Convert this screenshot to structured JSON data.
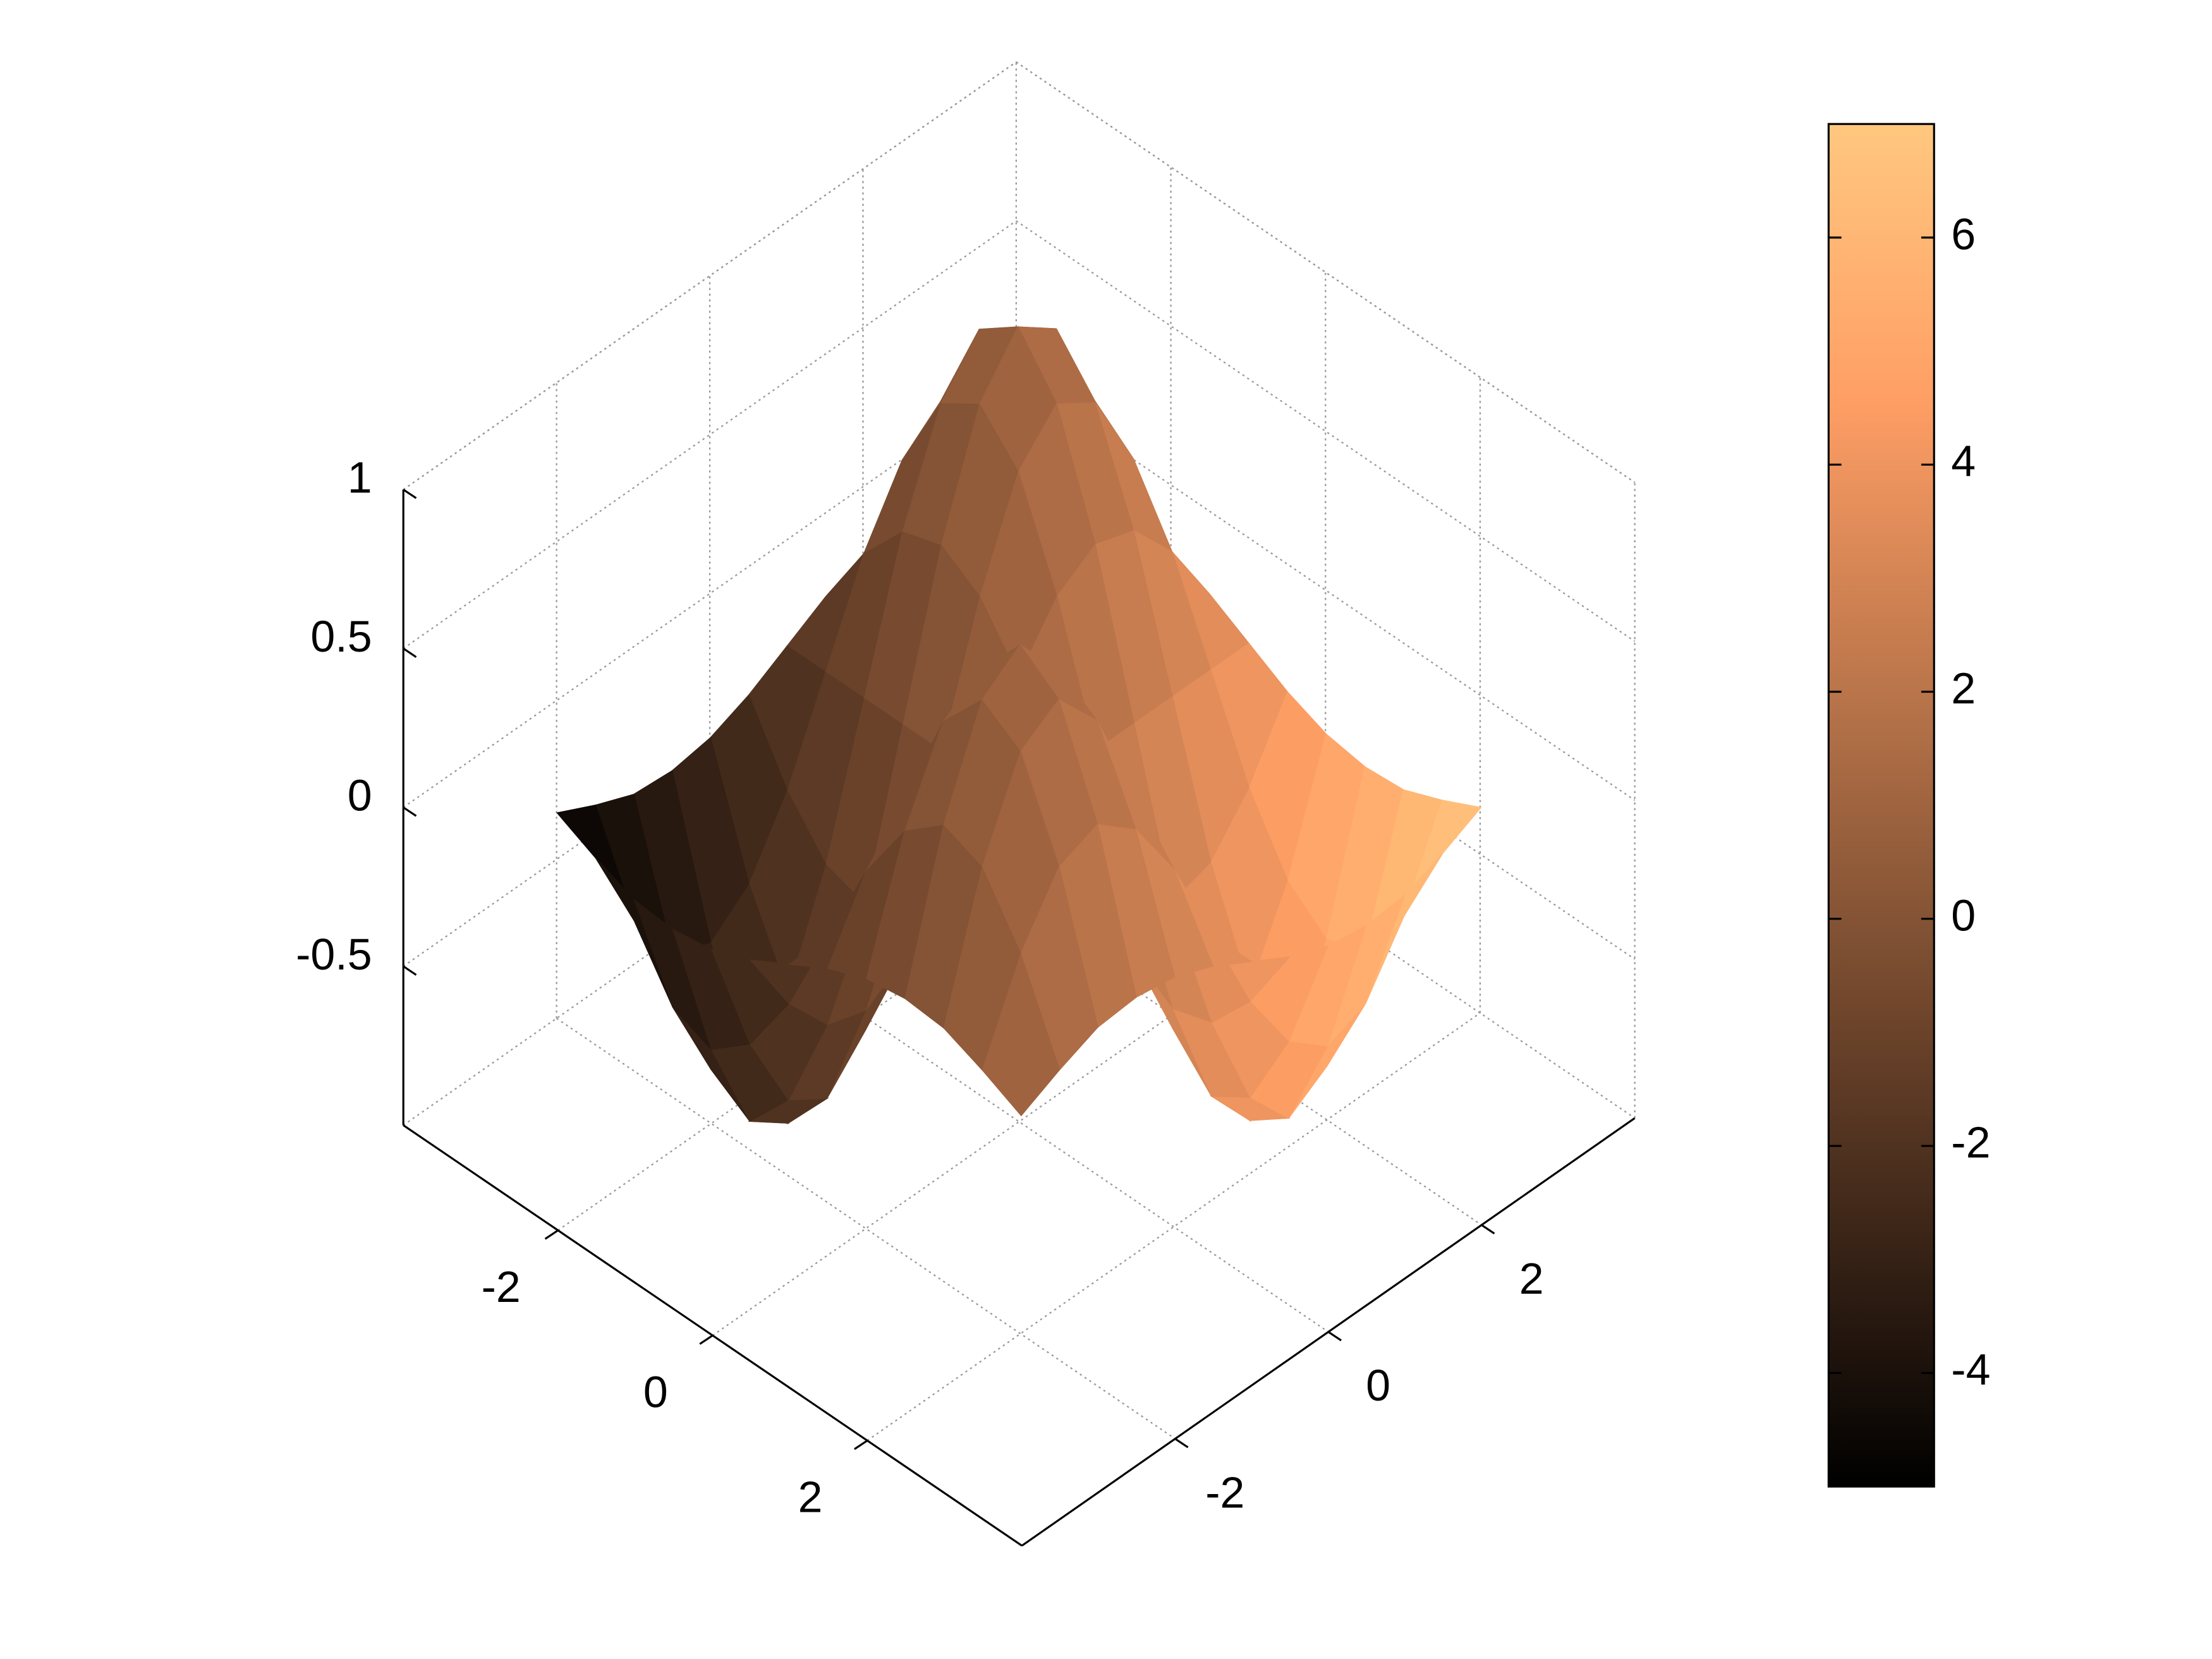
{
  "chart_data": {
    "type": "surface",
    "x": [
      -3,
      -2.5,
      -2,
      -1.5,
      -1,
      -0.5,
      0,
      0.5,
      1,
      1.5,
      2,
      2.5,
      3
    ],
    "y": [
      -3,
      -2.5,
      -2,
      -1.5,
      -1,
      -0.5,
      0,
      0.5,
      1,
      1.5,
      2,
      2.5,
      3
    ],
    "z": [
      [
        -0.02,
        -0.08,
        -0.13,
        -0.14,
        -0.12,
        -0.07,
        0,
        0.07,
        0.12,
        0.14,
        0.13,
        0.08,
        0.02
      ],
      [
        -0.08,
        -0.36,
        -0.55,
        -0.6,
        -0.5,
        -0.29,
        0,
        0.29,
        0.5,
        0.6,
        0.55,
        0.36,
        0.08
      ],
      [
        -0.13,
        -0.55,
        -0.83,
        -0.91,
        -0.76,
        -0.44,
        0,
        0.44,
        0.76,
        0.91,
        0.83,
        0.55,
        0.13
      ],
      [
        -0.14,
        -0.6,
        -0.91,
        -1,
        -0.84,
        -0.48,
        0,
        0.48,
        0.84,
        1,
        0.91,
        0.6,
        0.14
      ],
      [
        -0.12,
        -0.5,
        -0.76,
        -0.84,
        -0.71,
        -0.4,
        0,
        0.4,
        0.71,
        0.84,
        0.76,
        0.5,
        0.12
      ],
      [
        -0.07,
        -0.29,
        -0.44,
        -0.48,
        -0.4,
        -0.23,
        0,
        0.23,
        0.4,
        0.48,
        0.44,
        0.29,
        0.07
      ],
      [
        0,
        0,
        0,
        0,
        0,
        0,
        0,
        0,
        0,
        0,
        0,
        0,
        0
      ],
      [
        0.07,
        0.29,
        0.44,
        0.48,
        0.4,
        0.23,
        0,
        -0.23,
        -0.4,
        -0.48,
        -0.44,
        -0.29,
        -0.07
      ],
      [
        0.12,
        0.5,
        0.76,
        0.84,
        0.71,
        0.4,
        0,
        -0.4,
        -0.71,
        -0.84,
        -0.76,
        -0.5,
        -0.12
      ],
      [
        0.14,
        0.6,
        0.91,
        1,
        0.84,
        0.48,
        0,
        -0.48,
        -0.84,
        -1,
        -0.91,
        -0.6,
        -0.14
      ],
      [
        0.13,
        0.55,
        0.83,
        0.91,
        0.76,
        0.44,
        0,
        -0.44,
        -0.76,
        -0.91,
        -0.83,
        -0.55,
        -0.13
      ],
      [
        0.08,
        0.36,
        0.55,
        0.6,
        0.5,
        0.29,
        0,
        -0.29,
        -0.5,
        -0.6,
        -0.55,
        -0.36,
        -0.08
      ],
      [
        0.02,
        0.08,
        0.13,
        0.14,
        0.12,
        0.07,
        0,
        -0.07,
        -0.12,
        -0.14,
        -0.13,
        -0.08,
        -0.02
      ]
    ],
    "c": [
      [
        -5,
        -4.5,
        -4,
        -3.5,
        -3,
        -2.5,
        -2,
        -1.5,
        -1,
        -0.5,
        0,
        0.5,
        1
      ],
      [
        -4.5,
        -4,
        -3.5,
        -3,
        -2.5,
        -2,
        -1.5,
        -1,
        -0.5,
        0,
        0.5,
        1,
        1.5
      ],
      [
        -4,
        -3.5,
        -3,
        -2.5,
        -2,
        -1.5,
        -1,
        -0.5,
        0,
        0.5,
        1,
        1.5,
        2
      ],
      [
        -3.5,
        -3,
        -2.5,
        -2,
        -1.5,
        -1,
        -0.5,
        0,
        0.5,
        1,
        1.5,
        2,
        2.5
      ],
      [
        -3,
        -2.5,
        -2,
        -1.5,
        -1,
        -0.5,
        0,
        0.5,
        1,
        1.5,
        2,
        2.5,
        3
      ],
      [
        -2.5,
        -2,
        -1.5,
        -1,
        -0.5,
        0,
        0.5,
        1,
        1.5,
        2,
        2.5,
        3,
        3.5
      ],
      [
        -2,
        -1.5,
        -1,
        -0.5,
        0,
        0.5,
        1,
        1.5,
        2,
        2.5,
        3,
        3.5,
        4
      ],
      [
        -1.5,
        -1,
        -0.5,
        0,
        0.5,
        1,
        1.5,
        2,
        2.5,
        3,
        3.5,
        4,
        4.5
      ],
      [
        -1,
        -0.5,
        0,
        0.5,
        1,
        1.5,
        2,
        2.5,
        3,
        3.5,
        4,
        4.5,
        5
      ],
      [
        -0.5,
        0,
        0.5,
        1,
        1.5,
        2,
        2.5,
        3,
        3.5,
        4,
        4.5,
        5,
        5.5
      ],
      [
        0,
        0.5,
        1,
        1.5,
        2,
        2.5,
        3,
        3.5,
        4,
        4.5,
        5,
        5.5,
        6
      ],
      [
        0.5,
        1,
        1.5,
        2,
        2.5,
        3,
        3.5,
        4,
        4.5,
        5,
        5.5,
        6,
        6.5
      ],
      [
        1,
        1.5,
        2,
        2.5,
        3,
        3.5,
        4,
        4.5,
        5,
        5.5,
        6,
        6.5,
        7
      ]
    ],
    "xlim": [
      -4,
      4
    ],
    "ylim": [
      -4,
      4
    ],
    "zlim": [
      -1,
      1
    ],
    "xticks": [
      -2,
      0,
      2
    ],
    "yticks": [
      -2,
      0,
      2
    ],
    "zticks": [
      -0.5,
      0,
      0.5,
      1
    ],
    "clim": [
      -5,
      7
    ],
    "cticks": [
      -4,
      -2,
      0,
      2,
      4,
      6
    ],
    "colormap": "copper",
    "grid": true,
    "colorbar": true
  }
}
